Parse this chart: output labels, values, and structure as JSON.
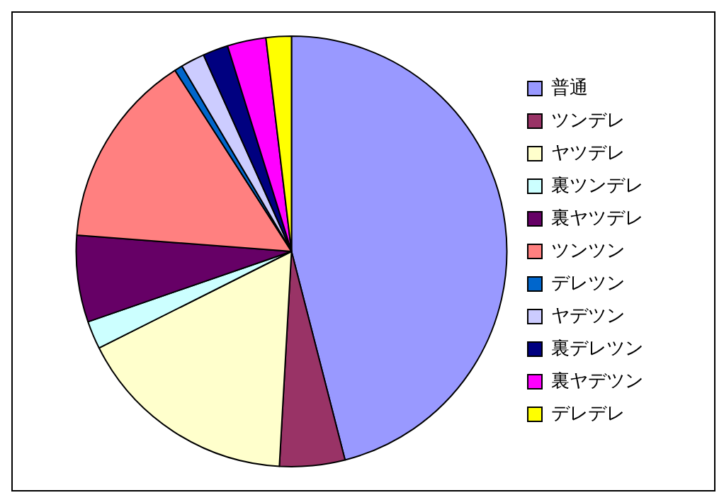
{
  "chart_data": {
    "type": "pie",
    "categories": [
      "普通",
      "ツンデレ",
      "ヤツデレ",
      "裏ツンデレ",
      "裏ヤツデレ",
      "ツンツン",
      "デレツン",
      "ヤデツン",
      "裏デレツン",
      "裏ヤデツン",
      "デレデレ"
    ],
    "values": [
      46.0,
      4.9,
      16.7,
      2.1,
      6.5,
      14.7,
      0.6,
      1.8,
      1.9,
      2.9,
      1.9
    ],
    "colors": [
      "#9999ff",
      "#993366",
      "#ffffcc",
      "#ccffff",
      "#660066",
      "#ff8080",
      "#0066cc",
      "#ccccff",
      "#000080",
      "#ff00ff",
      "#ffff00"
    ],
    "legend": "right"
  }
}
